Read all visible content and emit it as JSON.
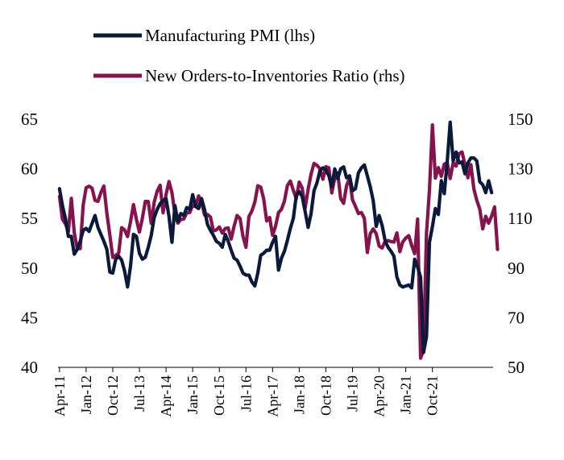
{
  "chart_data": {
    "type": "line",
    "title": "",
    "xlabel": "",
    "ylabel_left": "",
    "ylabel_right": "",
    "legend_position": "top",
    "grid": false,
    "x_tick_labels": [
      "Apr-11",
      "Jan-12",
      "Oct-12",
      "Jul-13",
      "Apr-14",
      "Jan-15",
      "Oct-15",
      "Jul-16",
      "Apr-17",
      "Jan-18",
      "Oct-18",
      "Jul-19",
      "Apr-20",
      "Jan-21",
      "Oct-21"
    ],
    "x_start": "Apr-11",
    "frequency": "monthly",
    "y_left": {
      "min": 40,
      "max": 65,
      "ticks": [
        "40",
        "45",
        "50",
        "55",
        "60",
        "65"
      ]
    },
    "y_right": {
      "min": 50,
      "max": 150,
      "ticks": [
        "50",
        "70",
        "90",
        "110",
        "130",
        "150"
      ]
    },
    "series": [
      {
        "name": "Manufacturing PMI (lhs)",
        "axis": "left",
        "color": "#0b1a3a",
        "values": [
          58.0,
          56.3,
          55.0,
          53.2,
          53.2,
          51.4,
          51.9,
          52.7,
          53.8,
          54.0,
          53.7,
          54.5,
          55.3,
          54.1,
          53.4,
          52.7,
          51.9,
          49.6,
          49.5,
          50.9,
          51.2,
          50.8,
          49.7,
          48.1,
          50.2,
          53.4,
          53.2,
          51.5,
          50.9,
          51.1,
          52.1,
          53.3,
          55.1,
          55.9,
          56.5,
          56.8,
          57.0,
          55.2,
          52.6,
          56.3,
          54.7,
          55.5,
          55.3,
          56.1,
          55.9,
          57.4,
          56.2,
          56.0,
          57.0,
          55.9,
          54.4,
          53.8,
          53.3,
          52.7,
          52.5,
          52.1,
          53.4,
          52.7,
          51.8,
          51.0,
          50.8,
          50.2,
          49.5,
          49.3,
          49.3,
          48.6,
          48.2,
          49.5,
          51.3,
          51.5,
          51.8,
          51.8,
          52.6,
          53.2,
          49.8,
          51.0,
          51.7,
          52.8,
          54.0,
          55.0,
          57.3,
          57.7,
          57.2,
          55.7,
          54.1,
          55.5,
          57.8,
          58.6,
          59.8,
          60.1,
          59.9,
          59.3,
          58.2,
          60.0,
          59.0,
          60.0,
          60.2,
          59.1,
          59.3,
          57.8,
          58.0,
          59.6,
          60.1,
          60.4,
          59.3,
          58.2,
          56.8,
          54.2,
          55.3,
          54.3,
          52.8,
          52.1,
          51.7,
          51.2,
          49.1,
          48.3,
          48.1,
          48.2,
          48.3,
          48.0,
          50.9,
          50.1,
          49.1,
          41.5,
          43.1,
          52.6,
          54.2,
          56.0,
          55.4,
          58.8,
          57.5,
          60.7,
          64.7,
          60.8,
          61.7,
          60.6,
          60.7,
          59.5,
          60.6,
          61.1,
          61.1,
          60.8,
          58.7,
          58.4,
          57.6,
          58.8,
          57.6
        ]
      },
      {
        "name": "New Orders-to-Inventories Ratio (rhs)",
        "axis": "right",
        "color": "#85134e",
        "values": [
          118.9,
          109.7,
          107.9,
          104.7,
          118.1,
          104.2,
          97.8,
          97.9,
          115.3,
          122.4,
          123.0,
          122.2,
          117.3,
          116.9,
          120.5,
          123.1,
          112.2,
          103.4,
          94.3,
          95.1,
          96.1,
          106.3,
          105.4,
          102.7,
          108.7,
          115.6,
          109.6,
          104.5,
          110.1,
          116.9,
          116.8,
          108.0,
          116.6,
          121.0,
          123.4,
          112.3,
          119.7,
          124.9,
          120.4,
          111.9,
          108.1,
          109.6,
          109.8,
          112.3,
          112.4,
          115.3,
          114.8,
          119.1,
          116.7,
          111.4,
          111.6,
          110.6,
          105.0,
          105.4,
          106.6,
          104.1,
          106.0,
          106.2,
          101.7,
          106.9,
          111.2,
          110.0,
          102.8,
          98.4,
          110.8,
          113.0,
          116.6,
          123.2,
          122.6,
          117.8,
          109.0,
          110.4,
          103.2,
          106.9,
          112.4,
          113.7,
          117.0,
          123.3,
          125.1,
          121.4,
          118.0,
          124.7,
          122.3,
          114.2,
          121.7,
          127.9,
          132.2,
          131.4,
          130.1,
          125.8,
          130.9,
          130.4,
          120.3,
          126.3,
          128.4,
          118.0,
          116.1,
          123.3,
          126.2,
          117.5,
          114.9,
          112.0,
          112.4,
          110.1,
          96.3,
          103.9,
          105.8,
          103.9,
          98.9,
          98.1,
          100.8,
          101.1,
          100.7,
          100.5,
          104.2,
          96.6,
          100.6,
          102.1,
          103.1,
          99.1,
          95.8,
          109.8,
          53.7,
          57.0,
          104.1,
          121.5,
          147.7,
          126.3,
          130.5,
          127.0,
          131.9,
          132.5,
          126.1,
          132.4,
          131.1,
          136.1,
          136.8,
          131.7,
          126.4,
          131.7,
          121.9,
          117.3,
          113.8,
          105.8,
          110.9,
          108.1,
          111.0,
          114.7,
          97.5
        ]
      }
    ]
  }
}
